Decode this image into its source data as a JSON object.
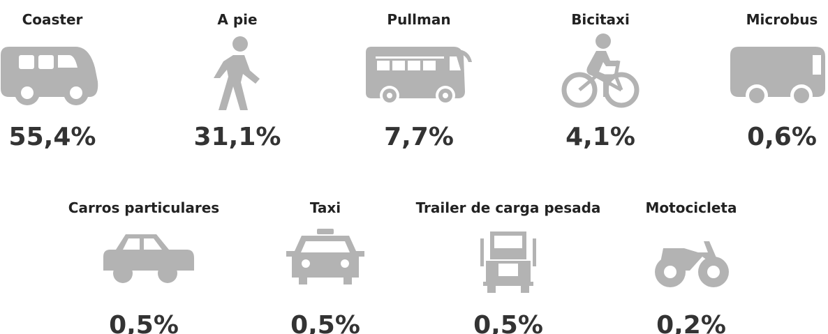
{
  "items": [
    {
      "label": "Coaster",
      "value": "55,4%"
    },
    {
      "label": "A pie",
      "value": "31,1%"
    },
    {
      "label": "Pullman",
      "value": "7,7%"
    },
    {
      "label": "Bicitaxi",
      "value": "4,1%"
    },
    {
      "label": "Microbus",
      "value": "0,6%"
    },
    {
      "label": "Carros particulares",
      "value": "0,5%"
    },
    {
      "label": "Taxi",
      "value": "0,5%"
    },
    {
      "label": "Trailer de carga pesada",
      "value": "0,5%"
    },
    {
      "label": "Motocicleta",
      "value": "0,2%"
    }
  ]
}
